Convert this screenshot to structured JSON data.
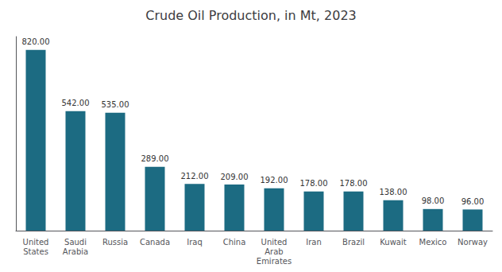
{
  "chart_data": {
    "type": "bar",
    "title": "Crude Oil Production, in Mt, 2023",
    "categories": [
      "United\nStates",
      "Saudi\nArabia",
      "Russia",
      "Canada",
      "Iraq",
      "China",
      "United\nArab\nEmirates",
      "Iran",
      "Brazil",
      "Kuwait",
      "Mexico",
      "Norway"
    ],
    "values": [
      820,
      542,
      535,
      289,
      212,
      209,
      192,
      178,
      178,
      138,
      98,
      96
    ],
    "value_labels": [
      "820.00",
      "542.00",
      "535.00",
      "289.00",
      "212.00",
      "209.00",
      "192.00",
      "178.00",
      "178.00",
      "138.00",
      "98.00",
      "96.00"
    ],
    "color": "#1c6b82",
    "ylim": [
      0,
      880
    ],
    "grid": false,
    "data_labels": true,
    "tick_labels": "x"
  }
}
